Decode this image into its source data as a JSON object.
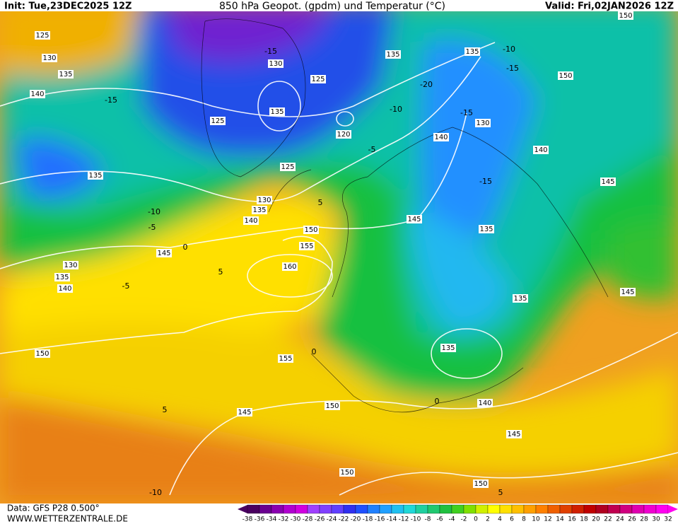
{
  "header": {
    "init": "Init: Tue,23DEC2025 12Z",
    "title": "850 hPa Geopot. (gpdm) und Temperatur (°C)",
    "valid": "Valid: Fri,02JAN2026 12Z"
  },
  "footer": {
    "source": "Data: GFS P28 0.500°",
    "website": "WWW.WETTERZENTRALE.DE"
  },
  "geopotential_labels": [
    "125",
    "130",
    "135",
    "140",
    "135",
    "130",
    "135",
    "125",
    "125",
    "120",
    "135",
    "135",
    "150",
    "130",
    "140",
    "140",
    "125",
    "130",
    "135",
    "140",
    "150",
    "155",
    "160",
    "145",
    "130",
    "135",
    "140",
    "145",
    "135",
    "145",
    "145",
    "135",
    "135",
    "150",
    "155",
    "140",
    "145",
    "150",
    "145",
    "150",
    "150",
    "150"
  ],
  "temperature_labels": [
    "-15",
    "-20",
    "-10",
    "-15",
    "-15",
    "-10",
    "-5",
    "-10",
    "-5",
    "0",
    "-5",
    "5",
    "5",
    "5",
    "0",
    "0",
    "5",
    "-10",
    "-15",
    "-15"
  ],
  "colorbar_ticks": [
    -38,
    -36,
    -34,
    -32,
    -30,
    -28,
    -26,
    -24,
    -22,
    -20,
    -18,
    -16,
    -14,
    -12,
    -10,
    -8,
    -6,
    -4,
    -2,
    0,
    2,
    4,
    6,
    8,
    10,
    12,
    14,
    16,
    18,
    20,
    22,
    24,
    26,
    28,
    30,
    32
  ]
}
